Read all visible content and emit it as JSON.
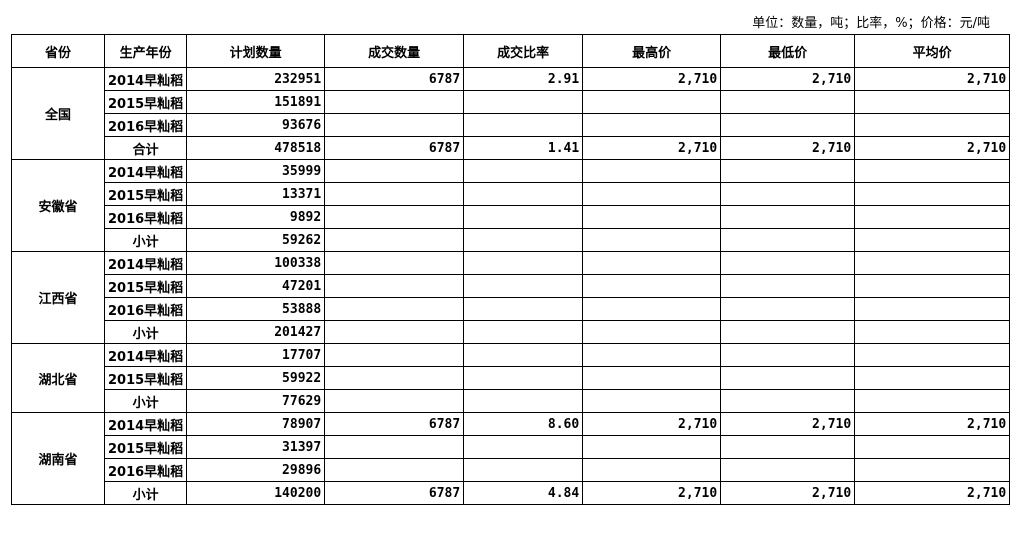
{
  "unit_note": "单位：数量，吨；比率，%；价格：元/吨",
  "headers": [
    "省份",
    "生产年份",
    "计划数量",
    "成交数量",
    "成交比率",
    "最高价",
    "最低价",
    "平均价"
  ],
  "groups": [
    {
      "province": "全国",
      "rows": [
        [
          "2014早籼稻",
          "232951",
          "6787",
          "2.91",
          "2,710",
          "2,710",
          "2,710"
        ],
        [
          "2015早籼稻",
          "151891",
          "",
          "",
          "",
          "",
          ""
        ],
        [
          "2016早籼稻",
          "93676",
          "",
          "",
          "",
          "",
          ""
        ],
        [
          "合计",
          "478518",
          "6787",
          "1.41",
          "2,710",
          "2,710",
          "2,710"
        ]
      ]
    },
    {
      "province": "安徽省",
      "rows": [
        [
          "2014早籼稻",
          "35999",
          "",
          "",
          "",
          "",
          ""
        ],
        [
          "2015早籼稻",
          "13371",
          "",
          "",
          "",
          "",
          ""
        ],
        [
          "2016早籼稻",
          "9892",
          "",
          "",
          "",
          "",
          ""
        ],
        [
          "小计",
          "59262",
          "",
          "",
          "",
          "",
          ""
        ]
      ]
    },
    {
      "province": "江西省",
      "rows": [
        [
          "2014早籼稻",
          "100338",
          "",
          "",
          "",
          "",
          ""
        ],
        [
          "2015早籼稻",
          "47201",
          "",
          "",
          "",
          "",
          ""
        ],
        [
          "2016早籼稻",
          "53888",
          "",
          "",
          "",
          "",
          ""
        ],
        [
          "小计",
          "201427",
          "",
          "",
          "",
          "",
          ""
        ]
      ]
    },
    {
      "province": "湖北省",
      "rows": [
        [
          "2014早籼稻",
          "17707",
          "",
          "",
          "",
          "",
          ""
        ],
        [
          "2015早籼稻",
          "59922",
          "",
          "",
          "",
          "",
          ""
        ],
        [
          "小计",
          "77629",
          "",
          "",
          "",
          "",
          ""
        ]
      ]
    },
    {
      "province": "湖南省",
      "rows": [
        [
          "2014早籼稻",
          "78907",
          "6787",
          "8.60",
          "2,710",
          "2,710",
          "2,710"
        ],
        [
          "2015早籼稻",
          "31397",
          "",
          "",
          "",
          "",
          ""
        ],
        [
          "2016早籼稻",
          "29896",
          "",
          "",
          "",
          "",
          ""
        ],
        [
          "小计",
          "140200",
          "6787",
          "4.84",
          "2,710",
          "2,710",
          "2,710"
        ]
      ]
    }
  ]
}
